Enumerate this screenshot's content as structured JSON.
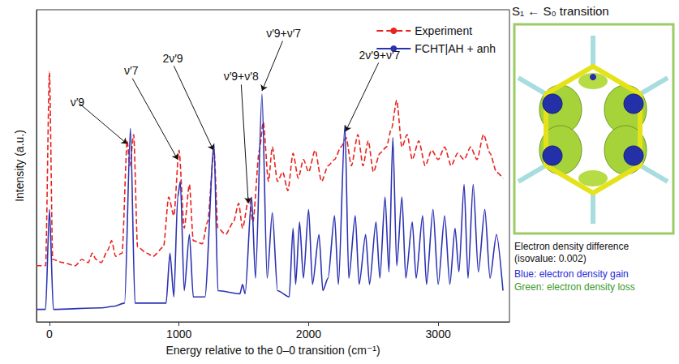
{
  "chart_data": {
    "type": "line",
    "x_label": "Energy relative to the 0–0 transition (cm⁻¹)",
    "y_label": "Intensity (a.u.)",
    "xlim": [
      -100,
      3550
    ],
    "xticks": [
      0,
      1000,
      2000,
      3000
    ],
    "ylim": [
      0,
      100
    ],
    "yticks": [],
    "tick_labels": "x",
    "grid": false,
    "legend": "upper right",
    "series": [
      {
        "name": "Experiment",
        "color": "#e8231f",
        "line_style": "dashed",
        "x": [
          -100,
          -30,
          0,
          25,
          100,
          200,
          250,
          300,
          330,
          360,
          400,
          450,
          480,
          510,
          560,
          600,
          620,
          650,
          680,
          750,
          800,
          880,
          920,
          960,
          1000,
          1040,
          1080,
          1110,
          1180,
          1220,
          1270,
          1300,
          1360,
          1420,
          1460,
          1490,
          1540,
          1570,
          1620,
          1650,
          1690,
          1720,
          1760,
          1800,
          1840,
          1880,
          1920,
          1960,
          2000,
          2050,
          2100,
          2150,
          2200,
          2250,
          2290,
          2330,
          2380,
          2420,
          2460,
          2500,
          2550,
          2600,
          2640,
          2680,
          2720,
          2760,
          2800,
          2850,
          2900,
          2950,
          3000,
          3050,
          3100,
          3150,
          3200,
          3250,
          3300,
          3350,
          3400,
          3450,
          3500
        ],
        "values": [
          18,
          18,
          80,
          20,
          19,
          18,
          20,
          19,
          22,
          20,
          19,
          23,
          26,
          21,
          22,
          58,
          50,
          60,
          24,
          22,
          21,
          24,
          40,
          34,
          55,
          30,
          44,
          26,
          25,
          32,
          55,
          30,
          28,
          32,
          38,
          30,
          40,
          32,
          55,
          64,
          45,
          56,
          45,
          48,
          42,
          54,
          46,
          52,
          48,
          55,
          45,
          50,
          52,
          56,
          59,
          50,
          60,
          50,
          58,
          48,
          54,
          56,
          62,
          71,
          56,
          60,
          52,
          58,
          50,
          55,
          52,
          56,
          50,
          54,
          52,
          56,
          52,
          60,
          54,
          48,
          46
        ]
      },
      {
        "name": "FCHT|AH + anh",
        "color": "#2b32b2",
        "line_style": "solid",
        "x": [
          -100,
          -30,
          0,
          30,
          400,
          500,
          580,
          625,
          660,
          900,
          930,
          960,
          990,
          1010,
          1040,
          1080,
          1110,
          1200,
          1270,
          1300,
          1470,
          1490,
          1510,
          1560,
          1590,
          1640,
          1680,
          1720,
          1760,
          1850,
          1880,
          1900,
          1930,
          1960,
          2000,
          2030,
          2080,
          2110,
          2150,
          2200,
          2230,
          2280,
          2310,
          2360,
          2390,
          2440,
          2470,
          2520,
          2550,
          2590,
          2620,
          2650,
          2680,
          2720,
          2750,
          2800,
          2830,
          2880,
          2910,
          2960,
          3000,
          3050,
          3090,
          3130,
          3160,
          3200,
          3230,
          3270,
          3310,
          3360,
          3400,
          3450,
          3500
        ],
        "values": [
          4,
          4,
          36,
          4,
          4.5,
          5,
          6,
          62,
          6,
          6,
          22,
          8,
          40,
          45,
          10,
          28,
          8,
          8,
          57,
          10,
          9,
          12,
          9,
          40,
          14,
          73,
          14,
          35,
          10,
          8,
          30,
          12,
          32,
          14,
          36,
          12,
          28,
          10,
          14,
          34,
          12,
          63,
          14,
          34,
          12,
          28,
          12,
          32,
          14,
          40,
          16,
          59,
          18,
          40,
          14,
          32,
          14,
          34,
          12,
          36,
          12,
          34,
          12,
          30,
          16,
          44,
          14,
          44,
          16,
          36,
          14,
          28,
          10
        ]
      }
    ],
    "annotations": [
      {
        "text": "ν′9",
        "x": 600,
        "y": 57,
        "text_x": 230,
        "text_y": 70
      },
      {
        "text": "ν′7",
        "x": 990,
        "y": 52,
        "text_x": 640,
        "text_y": 78
      },
      {
        "text": "2ν′9",
        "x": 1265,
        "y": 55,
        "text_x": 960,
        "text_y": 82
      },
      {
        "text": "ν′9+ν′8",
        "x": 1535,
        "y": 38,
        "text_x": 1480,
        "text_y": 76
      },
      {
        "text": "ν′9+ν′7",
        "x": 1640,
        "y": 74,
        "text_x": 1800,
        "text_y": 90
      },
      {
        "text": "2ν′9+ν′7",
        "x": 2285,
        "y": 61,
        "text_x": 2540,
        "text_y": 83
      }
    ]
  },
  "inset": {
    "title": "S₁ ← S₀ transition",
    "caption": "Electron density difference (isovalue: 0.002)",
    "legend_items": [
      {
        "text": "Blue: electron density gain",
        "color": "#2a2ad6"
      },
      {
        "text": "Green: electron density loss",
        "color": "#3a9a2a"
      }
    ]
  }
}
